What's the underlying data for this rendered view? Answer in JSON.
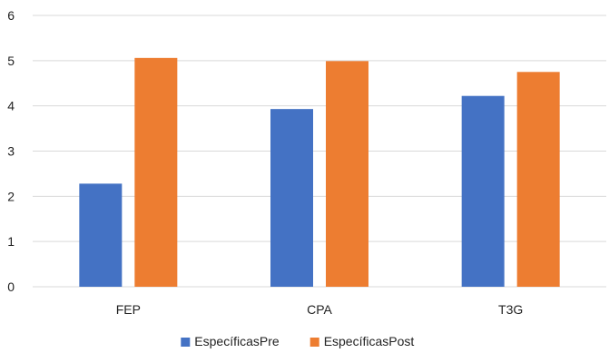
{
  "chart_data": {
    "type": "bar",
    "categories": [
      "FEP",
      "CPA",
      "T3G"
    ],
    "series": [
      {
        "name": "EspecíficasPre",
        "values": [
          2.28,
          3.93,
          4.22
        ],
        "color": "#4472c4"
      },
      {
        "name": "EspecíficasPost",
        "values": [
          5.06,
          4.99,
          4.75
        ],
        "color": "#ed7d31"
      }
    ],
    "title": "",
    "xlabel": "",
    "ylabel": "",
    "ylim": [
      0,
      6
    ],
    "yticks": [
      "0",
      "1",
      "2",
      "3",
      "4",
      "5",
      "6"
    ],
    "grid": true,
    "grid_color": "#d9d9d9",
    "legend_position": "bottom"
  }
}
